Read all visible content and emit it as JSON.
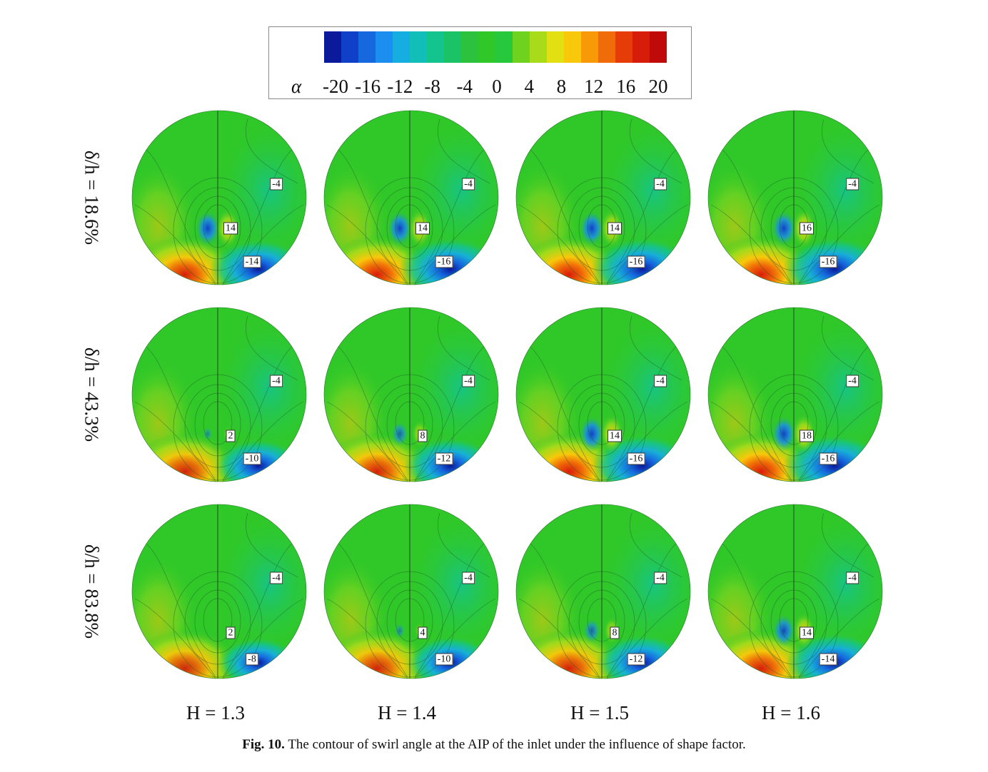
{
  "figure": {
    "legend": {
      "symbol": "α",
      "ticks": [
        "-20",
        "-16",
        "-12",
        "-8",
        "-4",
        "0",
        "4",
        "8",
        "12",
        "16",
        "20"
      ],
      "colors": [
        "#0a1a9a",
        "#1140c8",
        "#1668de",
        "#1b8ef0",
        "#16aee0",
        "#12bfb8",
        "#14c48e",
        "#1cc266",
        "#2cc23e",
        "#30c828",
        "#28c83c",
        "#6ed21e",
        "#a8dc1a",
        "#e2e012",
        "#f8c80a",
        "#f89a08",
        "#f06c08",
        "#e63c08",
        "#d81c0a",
        "#c00a0a"
      ]
    },
    "row_labels": [
      "δ/h = 18.6%",
      "δ/h = 43.3%",
      "δ/h = 83.8%"
    ],
    "col_labels": [
      "H = 1.3",
      "H = 1.4",
      "H = 1.5",
      "H = 1.6"
    ],
    "panels": [
      [
        {
          "labels": [
            "-4",
            "14",
            "-14"
          ],
          "pos": 14,
          "neg": -14,
          "vortex": 1.0
        },
        {
          "labels": [
            "-4",
            "14",
            "-16"
          ],
          "pos": 14,
          "neg": -16,
          "vortex": 1.0
        },
        {
          "labels": [
            "-4",
            "14",
            "-16"
          ],
          "pos": 14,
          "neg": -16,
          "vortex": 1.0
        },
        {
          "labels": [
            "-4",
            "16",
            "-16"
          ],
          "pos": 16,
          "neg": -16,
          "vortex": 1.0
        }
      ],
      [
        {
          "labels": [
            "-4",
            "2",
            "-10"
          ],
          "pos": 2,
          "neg": -10,
          "vortex": 0.2
        },
        {
          "labels": [
            "-4",
            "8",
            "-12"
          ],
          "pos": 8,
          "neg": -12,
          "vortex": 0.6
        },
        {
          "labels": [
            "-4",
            "14",
            "-16"
          ],
          "pos": 14,
          "neg": -16,
          "vortex": 1.0
        },
        {
          "labels": [
            "-4",
            "18",
            "-16"
          ],
          "pos": 18,
          "neg": -16,
          "vortex": 1.0
        }
      ],
      [
        {
          "labels": [
            "-4",
            "2",
            "-8"
          ],
          "pos": 2,
          "neg": -8,
          "vortex": 0.0
        },
        {
          "labels": [
            "-4",
            "4",
            "-10"
          ],
          "pos": 4,
          "neg": -10,
          "vortex": 0.25
        },
        {
          "labels": [
            "-4",
            "8",
            "-12"
          ],
          "pos": 8,
          "neg": -12,
          "vortex": 0.6
        },
        {
          "labels": [
            "-4",
            "14",
            "-14"
          ],
          "pos": 14,
          "neg": -14,
          "vortex": 0.9
        }
      ]
    ],
    "caption": {
      "prefix": "Fig. 10.",
      "text": "The contour of swirl angle at the AIP of the inlet under the influence of shape factor."
    }
  }
}
